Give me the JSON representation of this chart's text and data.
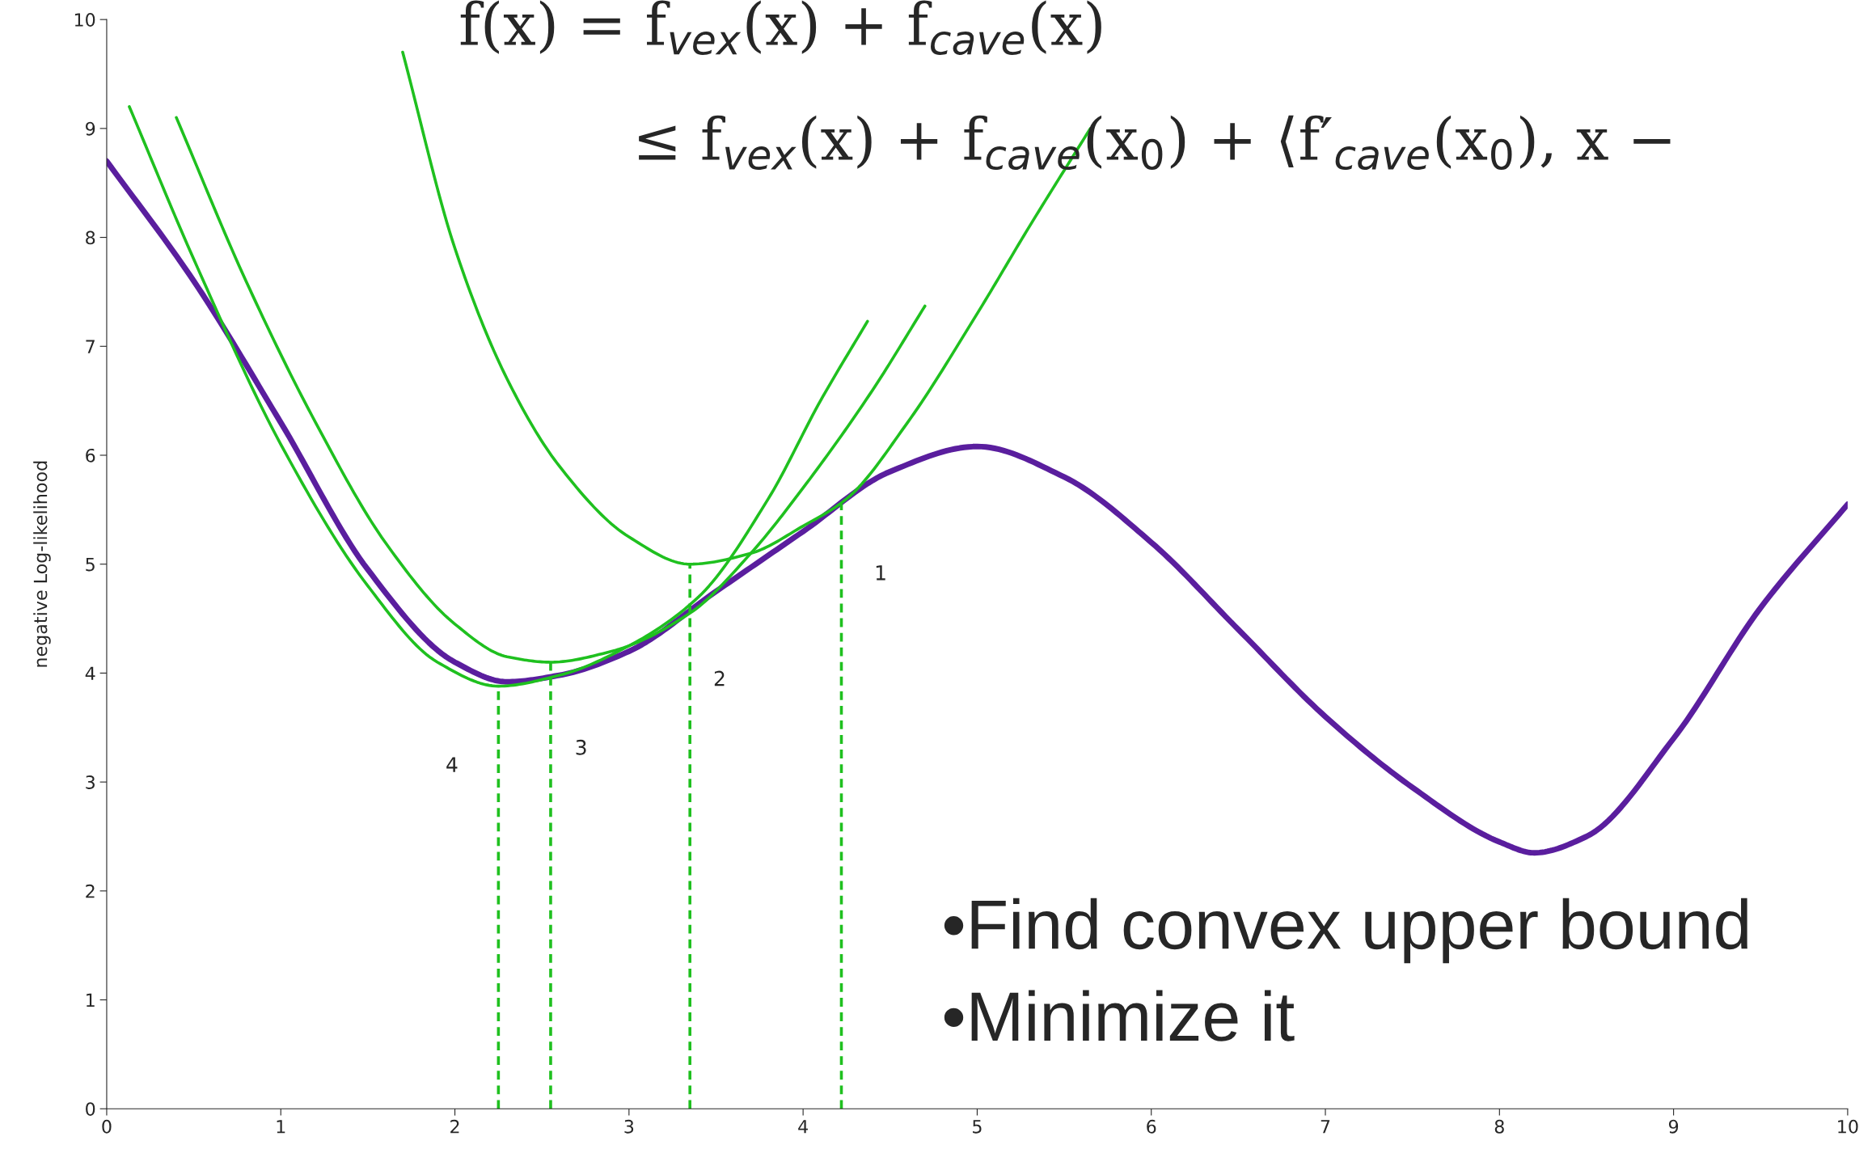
{
  "chart_data": {
    "type": "line",
    "ylabel": "negative Log-likelihood",
    "xlim": [
      0,
      10
    ],
    "ylim": [
      0,
      10
    ],
    "xticks": [
      0,
      1,
      2,
      3,
      4,
      5,
      6,
      7,
      8,
      9,
      10
    ],
    "yticks": [
      0,
      1,
      2,
      3,
      4,
      5,
      6,
      7,
      8,
      9,
      10
    ],
    "grid": false,
    "legend": false,
    "marker": "none",
    "series": [
      {
        "color": "#5a1e9e",
        "line_style": "solid",
        "x": [
          0,
          0.5,
          1,
          1.5,
          2,
          2.3,
          2.6,
          3,
          3.5,
          4,
          4.5,
          5,
          5.5,
          6,
          6.5,
          7,
          7.5,
          8,
          8.2,
          8.5,
          9,
          9.5,
          10
        ],
        "values": [
          8.7,
          7.6,
          6.3,
          4.95,
          4.1,
          3.92,
          3.98,
          4.2,
          4.75,
          5.3,
          5.85,
          6.08,
          5.8,
          5.2,
          4.4,
          3.6,
          2.95,
          2.45,
          2.35,
          2.5,
          3.4,
          4.6,
          5.55
        ]
      },
      {
        "color": "#1fc01f",
        "line_style": "solid",
        "x": [
          1.7,
          2.0,
          2.3,
          2.6,
          3.0,
          3.35,
          3.7,
          4.0,
          4.25,
          4.6,
          5.0,
          5.3,
          5.65
        ],
        "values": [
          9.7,
          7.9,
          6.7,
          5.9,
          5.25,
          5.0,
          5.1,
          5.35,
          5.6,
          6.3,
          7.3,
          8.1,
          9.0
        ]
      },
      {
        "color": "#1fc01f",
        "line_style": "solid",
        "x": [
          0.4,
          0.8,
          1.2,
          1.6,
          2.0,
          2.3,
          2.55,
          2.9,
          3.35,
          3.7,
          4.0,
          4.4,
          4.7
        ],
        "values": [
          9.1,
          7.6,
          6.3,
          5.2,
          4.45,
          4.15,
          4.1,
          4.2,
          4.55,
          5.1,
          5.7,
          6.6,
          7.37
        ]
      },
      {
        "color": "#1fc01f",
        "line_style": "solid",
        "x": [
          0.13,
          0.5,
          1.0,
          1.5,
          1.9,
          2.25,
          2.6,
          3.0,
          3.4,
          3.8,
          4.1,
          4.37
        ],
        "values": [
          9.2,
          7.8,
          6.1,
          4.8,
          4.1,
          3.88,
          3.98,
          4.25,
          4.7,
          5.6,
          6.5,
          7.23
        ]
      },
      {
        "color": "#1fc01f",
        "line_style": "dashed",
        "x": [
          4.22,
          4.22
        ],
        "values": [
          0,
          5.55
        ]
      },
      {
        "color": "#1fc01f",
        "line_style": "dashed",
        "x": [
          3.35,
          3.35
        ],
        "values": [
          0,
          5.0
        ]
      },
      {
        "color": "#1fc01f",
        "line_style": "dashed",
        "x": [
          2.55,
          2.55
        ],
        "values": [
          0,
          4.1
        ]
      },
      {
        "color": "#1fc01f",
        "line_style": "dashed",
        "x": [
          2.25,
          2.25
        ],
        "values": [
          0,
          3.88
        ]
      }
    ],
    "annotations": [
      "1",
      "2",
      "3",
      "4",
      "f(x) = f$_{vex}$(x) + f$_{cave}$(x)",
      "≤ f$_{vex}$(x) + f$_{cave}$(x$_{0}$) + ⟨f′$_{cave}$(x$_{0}$), x −",
      "•Find convex upper bound",
      "•Minimize it"
    ]
  }
}
